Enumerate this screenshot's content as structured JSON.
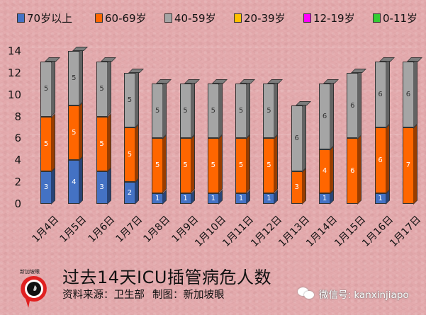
{
  "chart_data": {
    "type": "bar",
    "stacked": true,
    "style": "3d-column",
    "title": "过去14天ICU插管病危人数",
    "subtitle": "资料来源：卫生部    制图：新加坡眼",
    "xlabel": "",
    "ylabel": "",
    "ylim": [
      0,
      14
    ],
    "yticks": [
      0,
      2,
      4,
      6,
      8,
      10,
      12,
      14
    ],
    "legend_position": "top",
    "categories": [
      "1月4日",
      "1月5日",
      "1月6日",
      "1月7日",
      "1月8日",
      "1月9日",
      "1月10日",
      "1月11日",
      "1月12日",
      "1月13日",
      "1月14日",
      "1月15日",
      "1月16日",
      "1月17日"
    ],
    "series": [
      {
        "name": "70岁以上",
        "color": "#4472c4",
        "values": [
          3,
          4,
          3,
          2,
          1,
          1,
          1,
          1,
          1,
          0,
          1,
          0,
          1,
          0
        ]
      },
      {
        "name": "60-69岁",
        "color": "#ff6600",
        "values": [
          5,
          5,
          5,
          5,
          5,
          5,
          5,
          5,
          5,
          3,
          4,
          6,
          6,
          7
        ]
      },
      {
        "name": "40-59岁",
        "color": "#a5a5a5",
        "values": [
          5,
          5,
          5,
          5,
          5,
          5,
          5,
          5,
          5,
          6,
          6,
          6,
          6,
          6
        ]
      },
      {
        "name": "20-39岁",
        "color": "#ffc000",
        "values": [
          0,
          0,
          0,
          0,
          0,
          0,
          0,
          0,
          0,
          0,
          0,
          0,
          0,
          0
        ]
      },
      {
        "name": "12-19岁",
        "color": "#ff00ff",
        "values": [
          0,
          0,
          0,
          0,
          0,
          0,
          0,
          0,
          0,
          0,
          0,
          0,
          0,
          0
        ]
      },
      {
        "name": "0-11岁",
        "color": "#33cc33",
        "values": [
          0,
          0,
          0,
          0,
          0,
          0,
          0,
          0,
          0,
          0,
          0,
          0,
          0,
          0
        ]
      }
    ],
    "totals": [
      13,
      14,
      13,
      12,
      11,
      11,
      11,
      11,
      11,
      9,
      11,
      12,
      13,
      13
    ]
  },
  "legend": [
    {
      "label": "70岁以上",
      "color": "#4472c4"
    },
    {
      "label": "60-69岁",
      "color": "#ff6600"
    },
    {
      "label": "40-59岁",
      "color": "#a5a5a5"
    },
    {
      "label": "20-39岁",
      "color": "#ffc000"
    },
    {
      "label": "12-19岁",
      "color": "#ff00ff"
    },
    {
      "label": "0-11岁",
      "color": "#33cc33"
    }
  ],
  "footer": {
    "title": "过去14天ICU插管病危人数",
    "source": "资料来源：卫生部",
    "credit": "制图：新加坡眼",
    "wechat": "微信号: kanxinjiapo",
    "logo_text": "新加坡眼"
  }
}
